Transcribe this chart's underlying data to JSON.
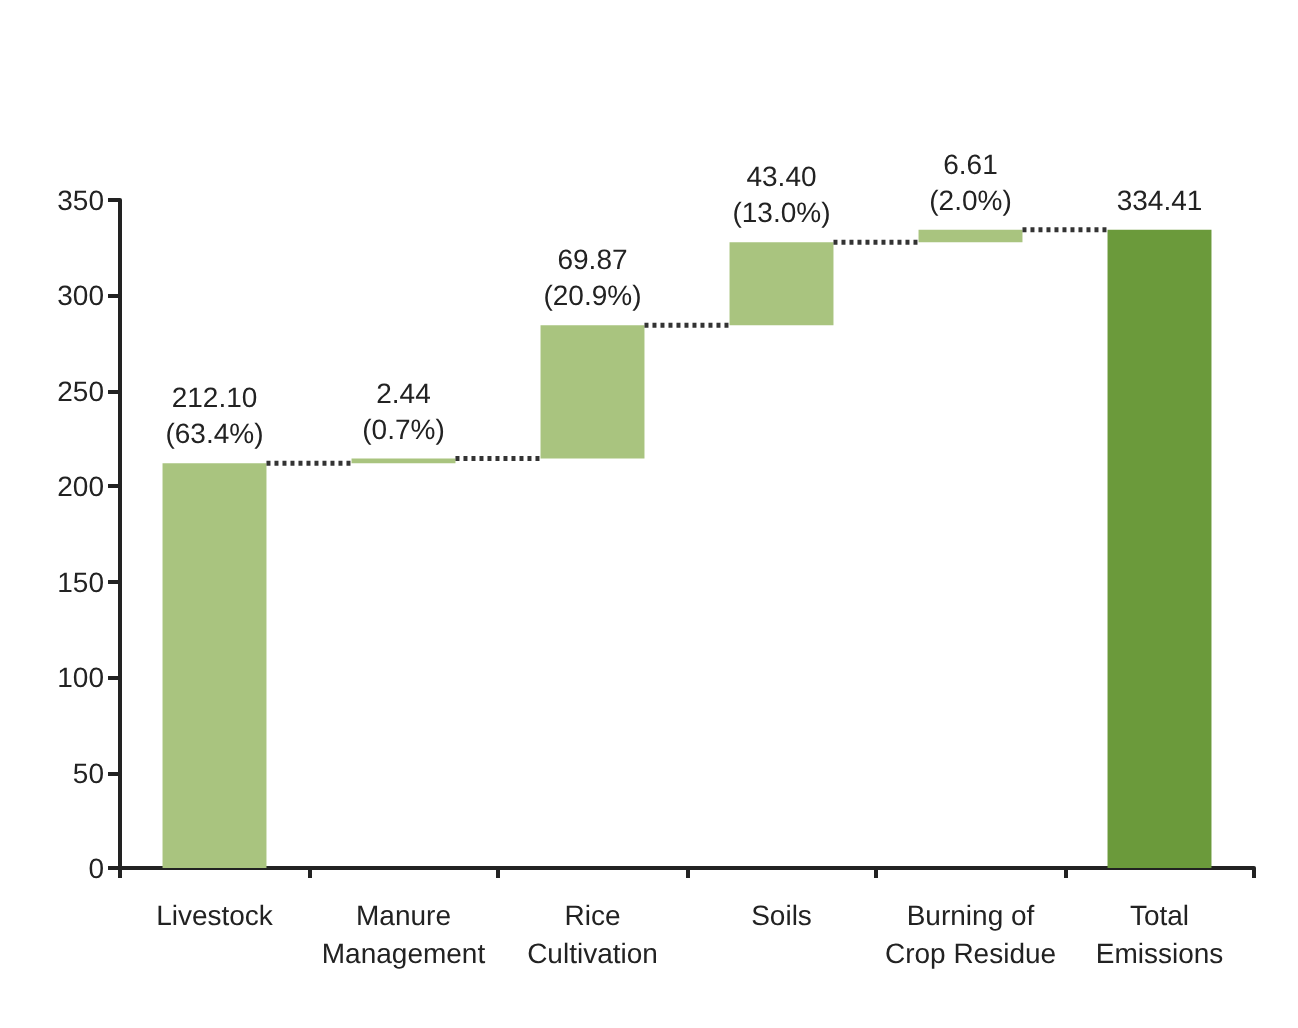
{
  "chart_data": {
    "type": "bar",
    "categories": [
      "Livestock",
      "Manure\nManagement",
      "Rice\nCultivation",
      "Soils",
      "Burning of\nCrop Residue",
      "Total\nEmissions"
    ],
    "values": [
      212.1,
      2.44,
      69.87,
      43.4,
      6.61,
      334.41
    ],
    "base": [
      0,
      212.1,
      214.54,
      284.41,
      327.81,
      0
    ],
    "colors": [
      "#a9c47f",
      "#a9c47f",
      "#a9c47f",
      "#a9c47f",
      "#a9c47f",
      "#6b9a3b"
    ],
    "value_labels": [
      "212.10\n(63.4%)",
      "2.44\n(0.7%)",
      "69.87\n(20.9%)",
      "43.40\n(13.0%)",
      "6.61\n(2.0%)",
      "334.41"
    ],
    "ylim": [
      0,
      350
    ],
    "yticks": [
      0,
      50,
      100,
      150,
      200,
      250,
      300,
      350
    ],
    "grid": false
  }
}
